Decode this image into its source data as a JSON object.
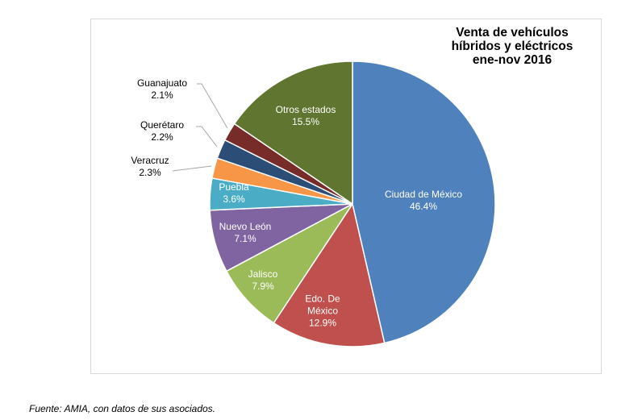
{
  "chart_data": {
    "type": "pie",
    "title": "Venta de vehículos\nhíbridos y eléctricos\nene-nov 2016",
    "start": "12 o'clock, clockwise",
    "slices": [
      {
        "name": "Ciudad de México",
        "value": 46.4,
        "label": "46.4%",
        "color": "#4f81bd"
      },
      {
        "name": "Edo. De México",
        "value": 12.9,
        "label": "12.9%",
        "color": "#c0504d"
      },
      {
        "name": "Jalisco",
        "value": 7.9,
        "label": "7.9%",
        "color": "#9bbb59"
      },
      {
        "name": "Nuevo León",
        "value": 7.1,
        "label": "7.1%",
        "color": "#8064a2"
      },
      {
        "name": "Puebla",
        "value": 3.6,
        "label": "3.6%",
        "color": "#4bacc6"
      },
      {
        "name": "Veracruz",
        "value": 2.3,
        "label": "2.3%",
        "color": "#f79646"
      },
      {
        "name": "Querétaro",
        "value": 2.2,
        "label": "2.2%",
        "color": "#2c4d75"
      },
      {
        "name": "Guanajuato",
        "value": 2.1,
        "label": "2.1%",
        "color": "#772c2a"
      },
      {
        "name": "Otros estados",
        "value": 15.5,
        "label": "15.5%",
        "color": "#5f7530"
      }
    ]
  },
  "footer": "Fuente: AMIA, con datos de sus asociados."
}
